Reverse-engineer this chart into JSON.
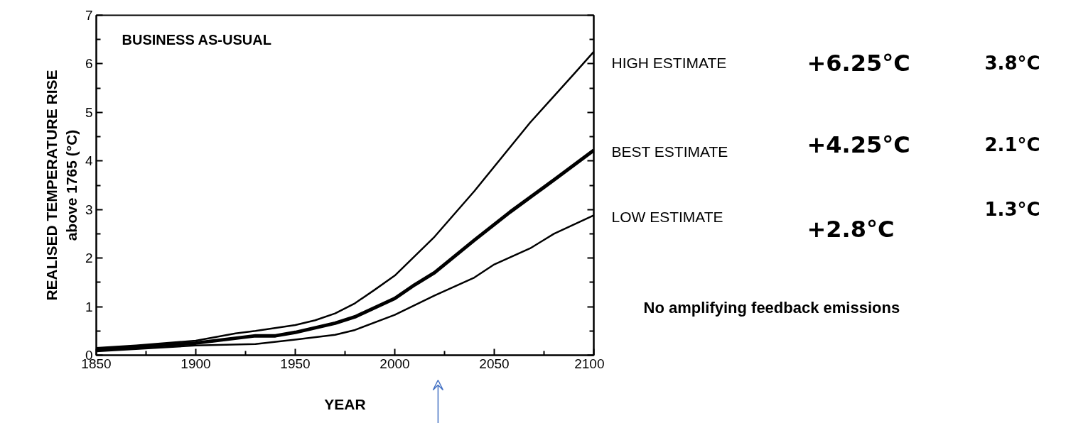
{
  "chart_data": {
    "type": "line",
    "title": "BUSINESS AS-USUAL",
    "xlabel": "YEAR",
    "ylabel": "REALISED TEMPERATURE RISE\nabove 1765 (°C)",
    "xlim": [
      1850,
      2100
    ],
    "ylim": [
      0,
      7
    ],
    "xticks": [
      1850,
      {
        "value": 1875,
        "label": null
      },
      1900,
      {
        "value": 1925,
        "label": null
      },
      1950,
      {
        "value": 1975,
        "label": null
      },
      2000,
      {
        "value": 2025,
        "label": null
      },
      2050,
      {
        "value": 2075,
        "label": null
      },
      2100
    ],
    "yticks": [
      0,
      {
        "value": 0.5,
        "label": null
      },
      1,
      {
        "value": 1.5,
        "label": null
      },
      2,
      {
        "value": 2.5,
        "label": null
      },
      3,
      {
        "value": 3.5,
        "label": null
      },
      4,
      {
        "value": 4.5,
        "label": null
      },
      5,
      {
        "value": 5.5,
        "label": null
      },
      6,
      {
        "value": 6.5,
        "label": null
      },
      7
    ],
    "line_style": "solid",
    "legend": "right",
    "series": [
      {
        "name": "HIGH ESTIMATE",
        "color": "#000000",
        "x": [
          1850,
          1870,
          1900,
          1920,
          1930,
          1950,
          1960,
          1970,
          1980,
          1990,
          2000,
          2020,
          2040,
          2068,
          2090,
          2100
        ],
        "values": [
          0.15,
          0.2,
          0.3,
          0.45,
          0.5,
          0.62,
          0.72,
          0.86,
          1.07,
          1.35,
          1.64,
          2.44,
          3.38,
          4.79,
          5.79,
          6.25
        ]
      },
      {
        "name": "BEST ESTIMATE",
        "color": "#000000",
        "x": [
          1850,
          1870,
          1900,
          1930,
          1940,
          1950,
          1970,
          1980,
          2000,
          2010,
          2020,
          2040,
          2058,
          2070,
          2080,
          2100
        ],
        "values": [
          0.12,
          0.17,
          0.25,
          0.4,
          0.4,
          0.47,
          0.66,
          0.79,
          1.17,
          1.45,
          1.7,
          2.37,
          2.95,
          3.31,
          3.61,
          4.22
        ]
      },
      {
        "name": "LOW ESTIMATE",
        "color": "#000000",
        "x": [
          1850,
          1900,
          1930,
          1950,
          1970,
          1980,
          2000,
          2020,
          2040,
          2050,
          2068,
          2080,
          2100
        ],
        "values": [
          0.08,
          0.2,
          0.23,
          0.32,
          0.42,
          0.52,
          0.83,
          1.23,
          1.6,
          1.87,
          2.2,
          2.5,
          2.88
        ]
      }
    ],
    "annotations": [
      "+6.25°C",
      "3.8°C",
      "+4.25°C",
      "2.1°C",
      "+2.8°C",
      "1.3°C",
      "No amplifying feedback emissions"
    ]
  }
}
